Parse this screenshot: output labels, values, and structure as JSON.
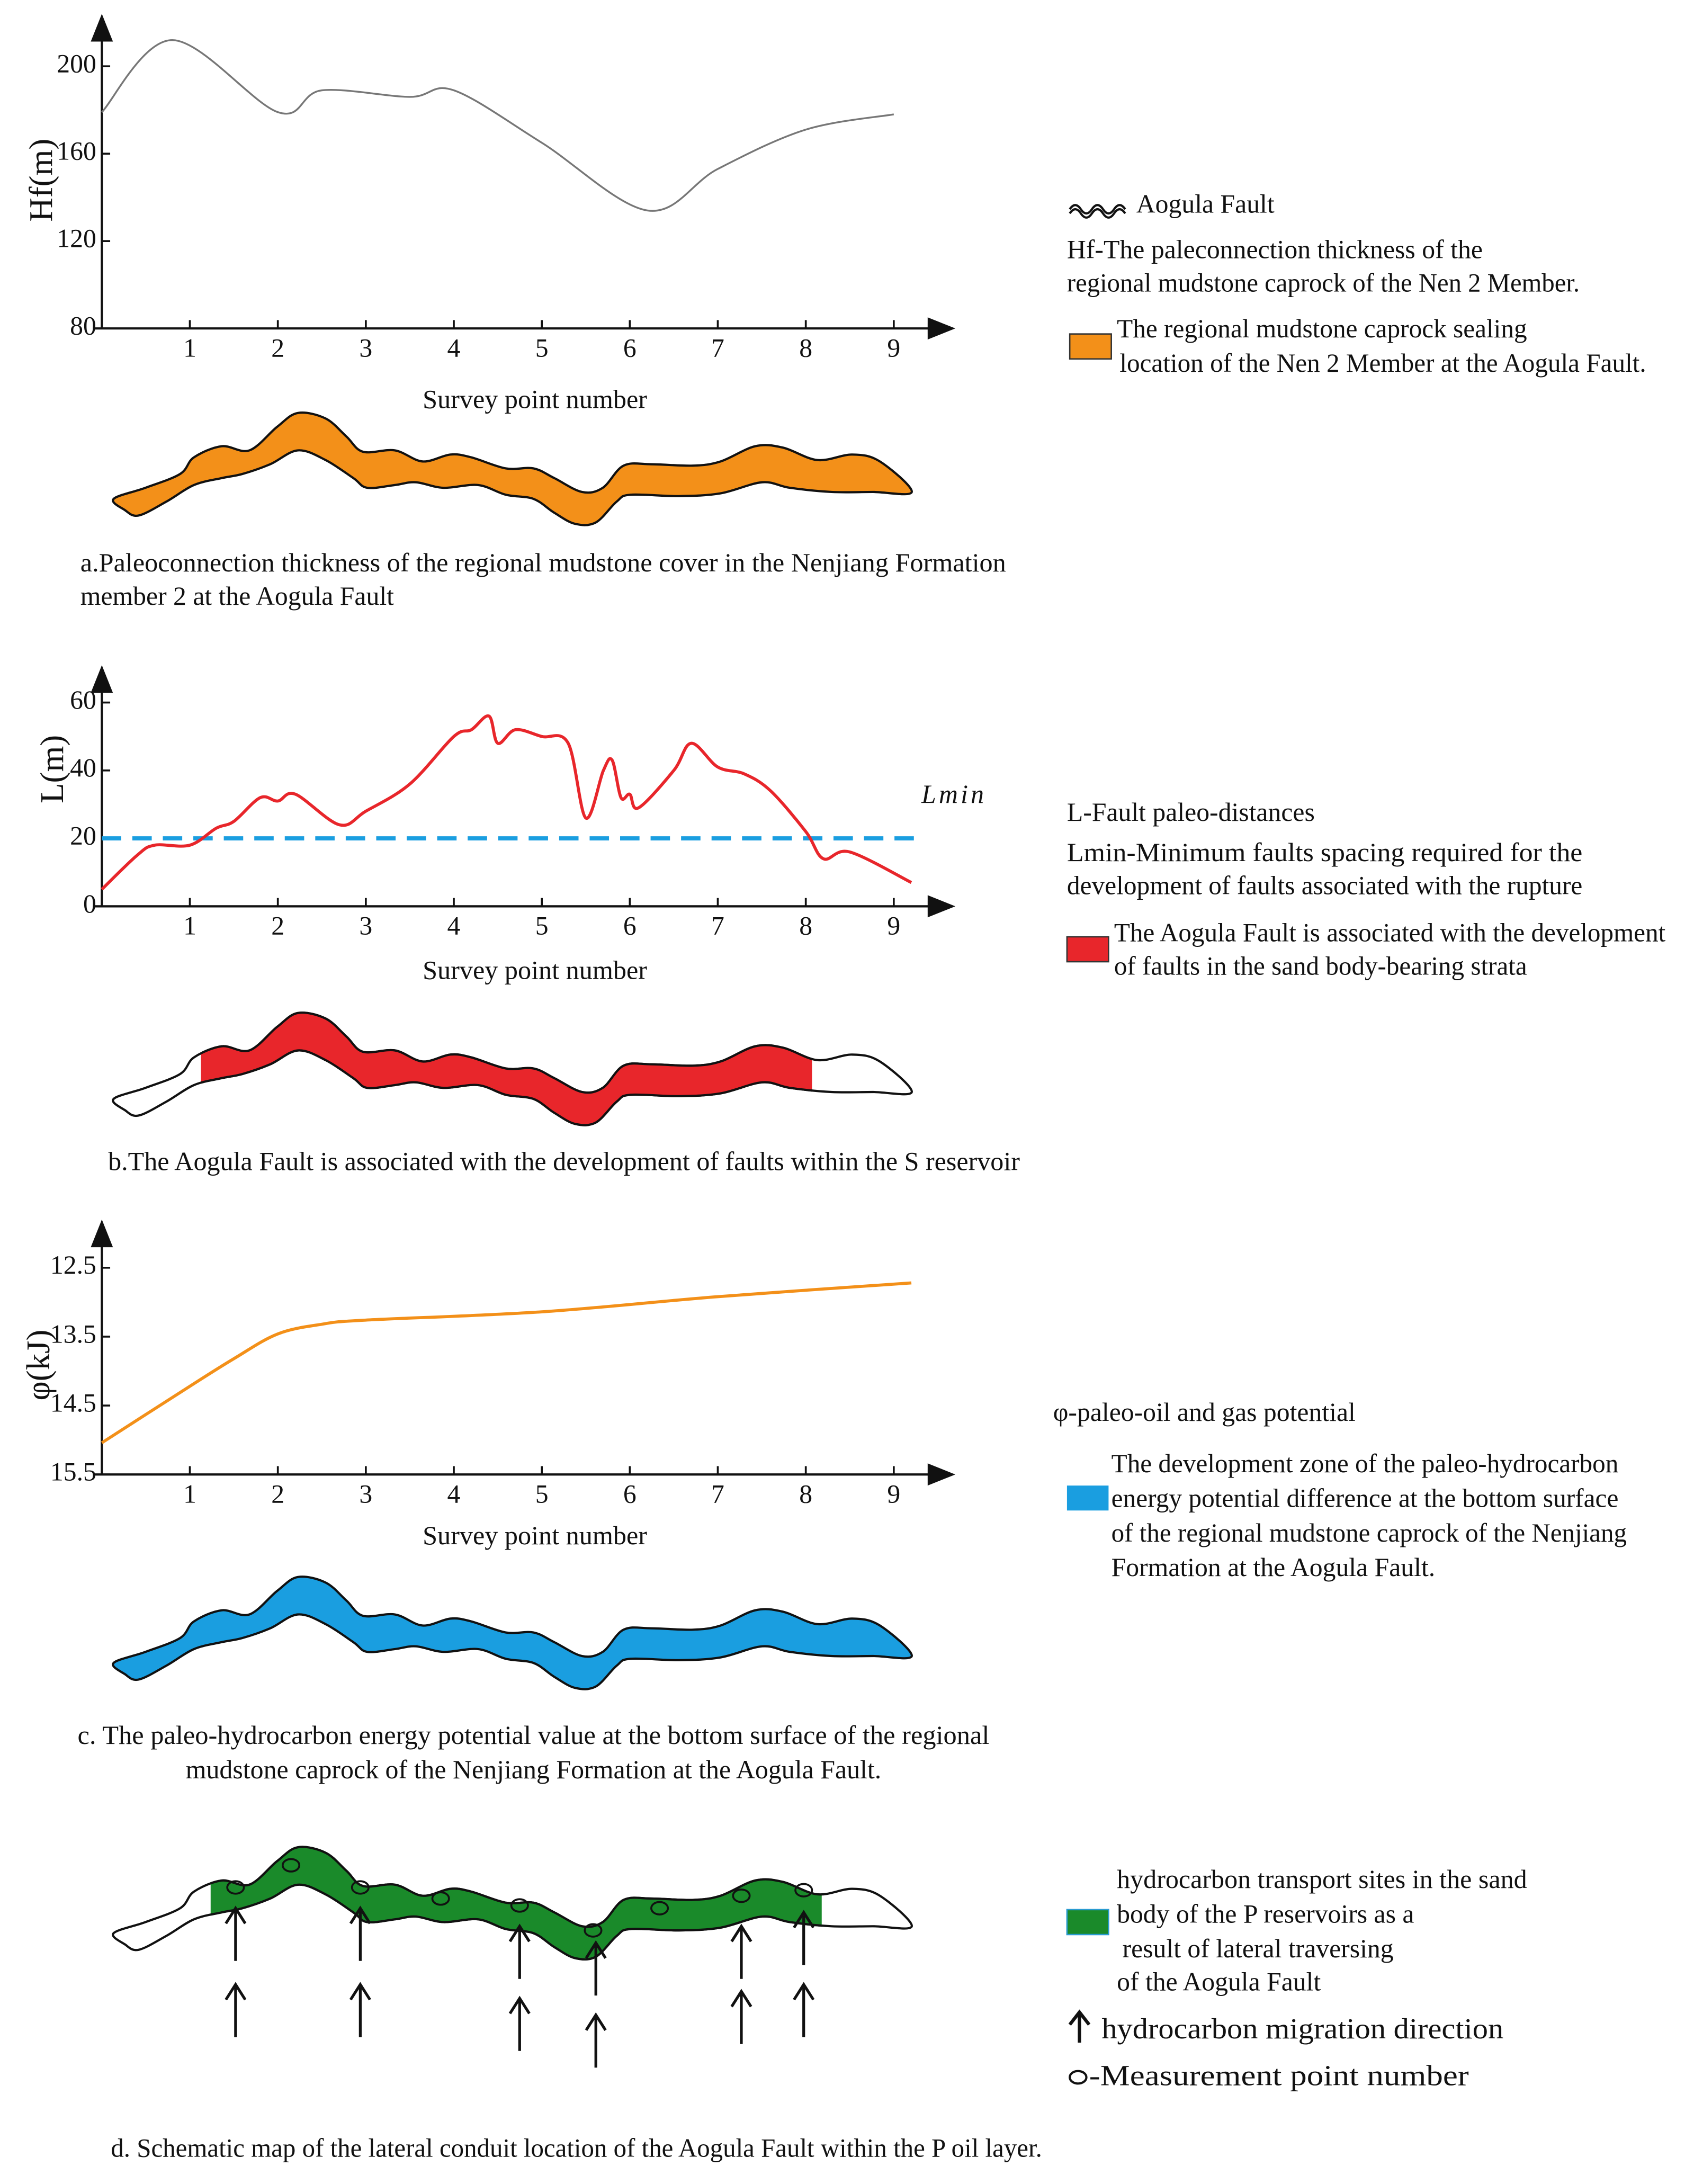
{
  "chart_data": [
    {
      "type": "line",
      "x_label": "Survey point number",
      "y_label": "Hf(m)",
      "color": "#777777",
      "x": [
        0,
        0.8,
        2,
        2.5,
        3.5,
        4,
        5,
        6.2,
        7,
        8,
        9
      ],
      "values": [
        179,
        212,
        179,
        189,
        186,
        189,
        165,
        134,
        153,
        171,
        178
      ],
      "xlim": [
        0,
        9.7
      ],
      "ylim": [
        80,
        224
      ],
      "xticks": [
        1,
        2,
        3,
        4,
        5,
        6,
        7,
        8,
        9
      ],
      "yticks": [
        80,
        120,
        160,
        200
      ]
    },
    {
      "type": "line",
      "x_label": "Survey point number",
      "y_label": "L(m)",
      "color": "#e8262b",
      "x": [
        0,
        0.4,
        0.6,
        1,
        1.3,
        1.5,
        1.8,
        2,
        2.2,
        2.7,
        3,
        3.5,
        4,
        4.2,
        4.4,
        4.5,
        4.7,
        5,
        5.3,
        5.5,
        5.7,
        5.8,
        5.9,
        6,
        6.1,
        6.5,
        6.7,
        7,
        7.3,
        7.6,
        8,
        8.2,
        8.5,
        9.2
      ],
      "values": [
        5,
        15,
        18,
        18,
        23,
        25,
        32,
        31,
        33,
        24,
        28,
        36,
        50,
        52,
        56,
        48,
        52,
        50,
        48,
        26,
        40,
        43,
        32,
        33,
        29,
        40,
        48,
        41,
        39,
        34,
        22,
        14,
        16,
        7
      ],
      "xlim": [
        0,
        9.7
      ],
      "ylim": [
        0,
        71
      ],
      "xticks": [
        1,
        2,
        3,
        4,
        5,
        6,
        7,
        8,
        9
      ],
      "yticks": [
        0,
        20,
        40,
        60
      ],
      "threshold": {
        "value": 20,
        "label": "Lmin",
        "color": "#1a9ee0"
      }
    },
    {
      "type": "line",
      "x_label": "Survey point number",
      "y_label": "φ(kJ)",
      "color": "#f39019",
      "x": [
        0,
        1,
        1.5,
        2,
        2.5,
        3,
        5,
        7,
        9.2
      ],
      "values": [
        15.04,
        14.22,
        13.82,
        13.46,
        13.32,
        13.26,
        13.14,
        12.92,
        12.72
      ],
      "xlim": [
        0,
        9.7
      ],
      "ylim": [
        15.5,
        11.8
      ],
      "xticks": [
        1,
        2,
        3,
        4,
        5,
        6,
        7,
        8,
        9
      ],
      "yticks": [
        12.5,
        13.5,
        14.5,
        15.5
      ]
    }
  ],
  "captions": {
    "a": [
      "a.Paleoconnection thickness of the regional mudstone cover in the Nenjiang Formation",
      "member 2 at the Aogula Fault"
    ],
    "b": [
      "b.The Aogula Fault is associated with the development of faults within the S reservoir"
    ],
    "c": [
      "c. The paleo-hydrocarbon energy potential value at the bottom surface of the regional",
      "mudstone caprock of the Nenjiang Formation at the Aogula Fault."
    ],
    "d": [
      "d. Schematic map of the lateral conduit location of the Aogula Fault within the P oil layer."
    ]
  },
  "legend": {
    "fault": "Aogula Fault",
    "hf": [
      "Hf-The paleconnection thickness of the",
      "regional mudstone caprock of the Nen 2 Member."
    ],
    "orange": [
      "The regional mudstone caprock sealing",
      "location of the Nen 2 Member at the Aogula Fault."
    ],
    "l": "L-Fault paleo-distances",
    "lmin": [
      "Lmin-Minimum faults spacing required for the",
      "development of faults associated with the rupture"
    ],
    "red": [
      "The Aogula Fault is associated with the development",
      "of faults in the sand body-bearing strata"
    ],
    "phi": "φ-paleo-oil and gas potential",
    "blue": [
      "The development zone of the paleo-hydrocarbon",
      "energy potential difference at the bottom surface",
      "of the regional mudstone caprock of the Nenjiang",
      "Formation at the Aogula Fault."
    ],
    "green": [
      "hydrocarbon  transport sites in the sand",
      "body of the P reservoirs as a",
      "result of lateral traversing",
      "of the Aogula Fault"
    ],
    "arrow": "hydrocarbon migration direction",
    "circle": "-Measurement point number"
  }
}
